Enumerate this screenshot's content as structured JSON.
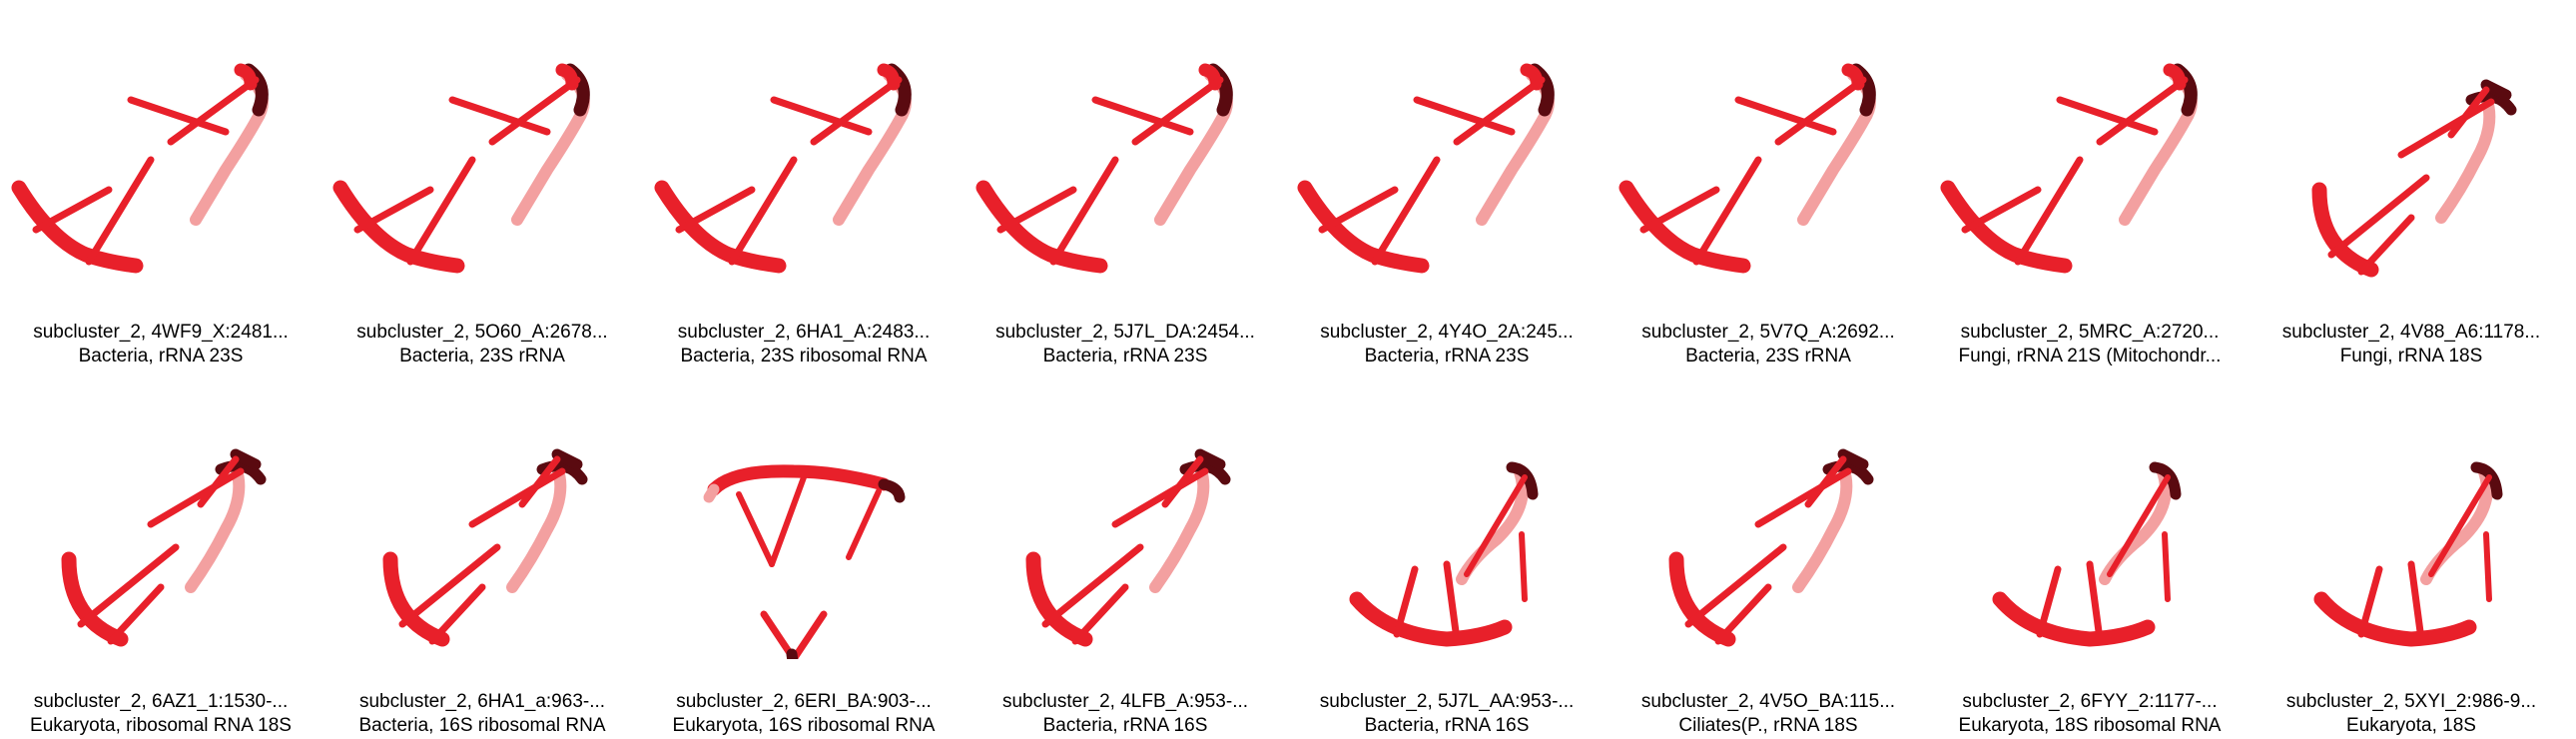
{
  "figure": {
    "items": [
      {
        "id": "subcluster_2, 4WF9_X:2481...",
        "desc": "Bacteria, rRNA 23S",
        "shape": "A"
      },
      {
        "id": "subcluster_2, 5O60_A:2678...",
        "desc": "Bacteria, 23S rRNA",
        "shape": "A"
      },
      {
        "id": "subcluster_2, 6HA1_A:2483...",
        "desc": "Bacteria, 23S ribosomal RNA",
        "shape": "A"
      },
      {
        "id": "subcluster_2, 5J7L_DA:2454...",
        "desc": "Bacteria, rRNA 23S",
        "shape": "A"
      },
      {
        "id": "subcluster_2, 4Y4O_2A:245...",
        "desc": "Bacteria, rRNA 23S",
        "shape": "A"
      },
      {
        "id": "subcluster_2, 5V7Q_A:2692...",
        "desc": "Bacteria, 23S rRNA",
        "shape": "A"
      },
      {
        "id": "subcluster_2, 5MRC_A:2720...",
        "desc": "Fungi, rRNA 21S (Mitochondr...",
        "shape": "A"
      },
      {
        "id": "subcluster_2, 4V88_A6:1178...",
        "desc": "Fungi, rRNA 18S",
        "shape": "B"
      },
      {
        "id": "subcluster_2, 6AZ1_1:1530-...",
        "desc": "Eukaryota, ribosomal RNA 18S",
        "shape": "B"
      },
      {
        "id": "subcluster_2, 6HA1_a:963-...",
        "desc": "Bacteria, 16S ribosomal RNA",
        "shape": "B"
      },
      {
        "id": "subcluster_2, 6ERI_BA:903-...",
        "desc": "Eukaryota, 16S ribosomal RNA",
        "shape": "C"
      },
      {
        "id": "subcluster_2, 4LFB_A:953-...",
        "desc": "Bacteria, rRNA 16S",
        "shape": "B"
      },
      {
        "id": "subcluster_2, 5J7L_AA:953-...",
        "desc": "Bacteria, rRNA 16S",
        "shape": "D"
      },
      {
        "id": "subcluster_2, 4V5O_BA:115...",
        "desc": "Ciliates(P., rRNA 18S",
        "shape": "B"
      },
      {
        "id": "subcluster_2, 6FYY_2:1177-...",
        "desc": "Eukaryota, 18S ribosomal RNA",
        "shape": "D"
      },
      {
        "id": "subcluster_2, 5XYI_2:986-9...",
        "desc": "Eukaryota, 18S",
        "shape": "D"
      }
    ],
    "colors": {
      "strand": "#e8202a",
      "strand_dark": "#5a0a10",
      "strand_light": "#f3a0a0",
      "caption_text": "#000000"
    }
  }
}
